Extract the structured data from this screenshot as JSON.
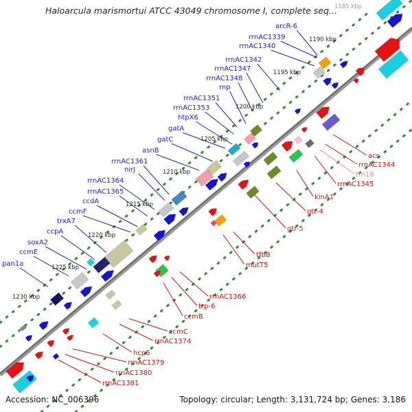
{
  "title": "Haloarcula marismortui ATCC 43049 chromosome I, complete seq...",
  "footer": {
    "accession": "Accession: NC_006396",
    "topology": "Topology: circular; Length: 3,131,724 bp; Genes: 3,186"
  },
  "colors": {
    "backbone": "#7f7f7f",
    "tick_dots": "#2e8b2e",
    "ruler_text": "#222222",
    "forward_label": "#1c1ccc",
    "reverse_label": "#cc1111",
    "rna_label": "#ee8899"
  },
  "ruler": [
    "1185 kbp",
    "1190 kbp",
    "1195 kbp",
    "1200 kbp",
    "1205 kbp",
    "1210 kbp",
    "1215 kbp",
    "1220 kbp",
    "1225 kbp",
    "1230 kbp"
  ],
  "forward_genes": [
    {
      "label": "arcR-6"
    },
    {
      "label": "rrnAC1339"
    },
    {
      "label": "rrnAC1340"
    },
    {
      "label": "rrnAC1342"
    },
    {
      "label": "rrnAC1347"
    },
    {
      "label": "rrnAC1348"
    },
    {
      "label": "rnp"
    },
    {
      "label": "rrnAC1351"
    },
    {
      "label": "rrnAC1353"
    },
    {
      "label": "htpX6"
    },
    {
      "label": "gatA"
    },
    {
      "label": "gatC"
    },
    {
      "label": "asnB"
    },
    {
      "label": "rrnAC1361"
    },
    {
      "label": "nirJ"
    },
    {
      "label": "rrnAC1364"
    },
    {
      "label": "rrnAC1365"
    },
    {
      "label": "ccdA"
    },
    {
      "label": "ccmF"
    },
    {
      "label": "trxA7"
    },
    {
      "label": "ccpA"
    },
    {
      "label": "soxA2"
    },
    {
      "label": "ccmE"
    },
    {
      "label": "pan1a"
    }
  ],
  "reverse_genes": [
    {
      "label": "acs"
    },
    {
      "label": "rrnAC1344"
    },
    {
      "label": "trn16"
    },
    {
      "label": "rrnAC1345"
    },
    {
      "label": "kinA1"
    },
    {
      "label": "gtr-4"
    },
    {
      "label": "gtr-5"
    },
    {
      "label": "tfbB"
    },
    {
      "label": "mutT5"
    },
    {
      "label": "rrnAC1366"
    },
    {
      "label": "trp-6"
    },
    {
      "label": "ccmB"
    },
    {
      "label": "ccmC"
    },
    {
      "label": "rrnAC1374"
    },
    {
      "label": "hcp6"
    },
    {
      "label": "rrnAC1379"
    },
    {
      "label": "rrnAC1380"
    },
    {
      "label": "rrnAC1381"
    }
  ]
}
